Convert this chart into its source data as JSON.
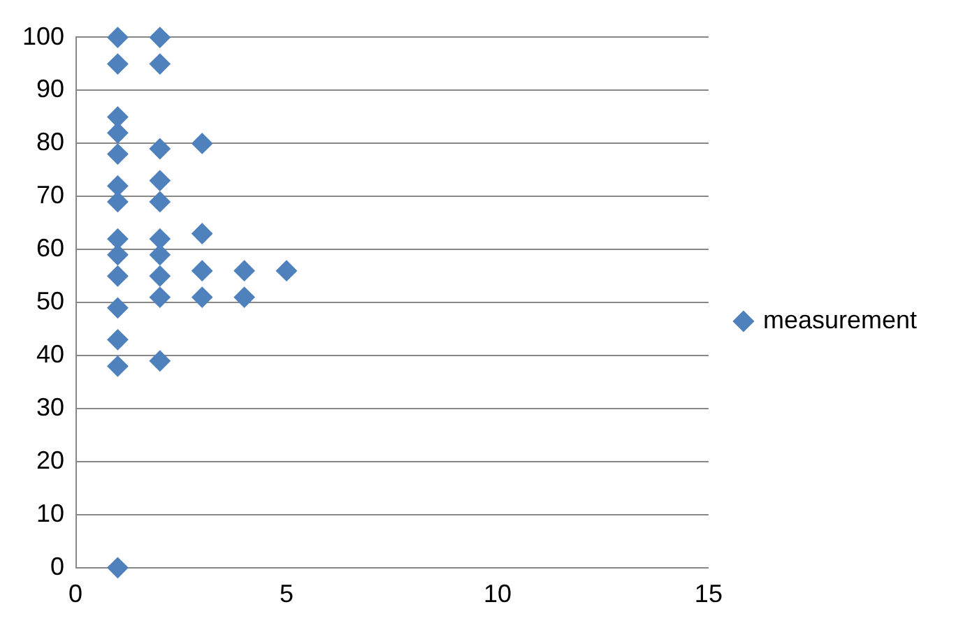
{
  "chart_data": {
    "type": "scatter",
    "xlim": [
      0,
      15
    ],
    "xticks": [
      0,
      5,
      10,
      15
    ],
    "ylim": [
      0,
      100
    ],
    "yticks": [
      0,
      10,
      20,
      30,
      40,
      50,
      60,
      70,
      80,
      90,
      100
    ],
    "grid": "y",
    "legend": "right",
    "marker": "diamond",
    "series": [
      {
        "name": "measurement",
        "color": "#4f81bd",
        "type": "scatter",
        "x": [
          1,
          1,
          1,
          1,
          1,
          1,
          1,
          1,
          1,
          1,
          1,
          1,
          1,
          1,
          2,
          2,
          2,
          2,
          2,
          2,
          2,
          2,
          2,
          2,
          3,
          3,
          3,
          3,
          4,
          4,
          5
        ],
        "values": [
          100,
          95,
          85,
          82,
          78,
          72,
          69,
          62,
          59,
          55,
          49,
          43,
          38,
          0,
          100,
          95,
          79,
          73,
          69,
          62,
          59,
          55,
          51,
          39,
          80,
          63,
          56,
          51,
          56,
          51,
          56
        ]
      }
    ]
  }
}
